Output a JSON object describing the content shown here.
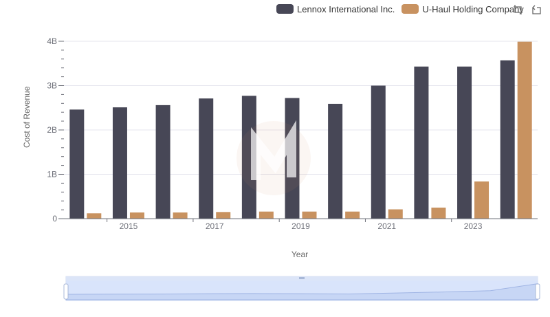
{
  "legend": {
    "items": [
      {
        "label": "Lennox International Inc.",
        "color": "#474756"
      },
      {
        "label": "U-Haul Holding Company",
        "color": "#c89260"
      }
    ]
  },
  "toolbox": {
    "icons": [
      "zoom-icon",
      "restore-icon"
    ]
  },
  "chart_data": {
    "type": "bar",
    "xlabel": "Year",
    "ylabel": "Cost of Revenue",
    "categories": [
      "2014",
      "2015",
      "2016",
      "2017",
      "2018",
      "2019",
      "2020",
      "2021",
      "2022",
      "2023",
      "2024"
    ],
    "x_tick_labels": [
      "2015",
      "2017",
      "2019",
      "2021",
      "2023"
    ],
    "y_tick_labels": [
      "0",
      "1B",
      "2B",
      "3B",
      "4B"
    ],
    "ylim": [
      0,
      4000000000
    ],
    "grid": true,
    "legend_position": "top-right",
    "series": [
      {
        "name": "Lennox International Inc.",
        "color": "#474756",
        "values": [
          2460000000,
          2510000000,
          2560000000,
          2710000000,
          2770000000,
          2720000000,
          2590000000,
          3000000000,
          3430000000,
          3430000000,
          3570000000
        ]
      },
      {
        "name": "U-Haul Holding Company",
        "color": "#c89260",
        "values": [
          120000000,
          140000000,
          140000000,
          150000000,
          160000000,
          160000000,
          160000000,
          210000000,
          250000000,
          840000000,
          3990000000
        ]
      }
    ]
  }
}
